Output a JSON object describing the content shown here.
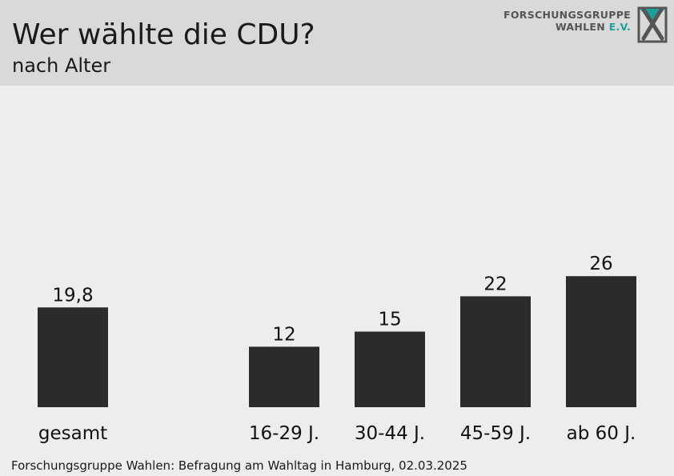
{
  "header": {
    "title": "Wer wählte die CDU?",
    "subtitle": "nach Alter",
    "logo": {
      "line1": "FORSCHUNGSGRUPPE",
      "line2_main": "WAHLEN ",
      "line2_accent": "E.V."
    }
  },
  "colors": {
    "bar": "#2b2b2b",
    "accent": "#1ca19a",
    "header_bg": "#d9d9d9",
    "plot_bg": "#ebeeed"
  },
  "chart_data": {
    "type": "bar",
    "title": "Wer wählte die CDU?",
    "subtitle": "nach Alter",
    "categories": [
      "gesamt",
      "16-29 J.",
      "30-44 J.",
      "45-59 J.",
      "ab 60 J."
    ],
    "values": [
      19.8,
      12,
      15,
      22,
      26
    ],
    "value_labels": [
      "19,8",
      "12",
      "15",
      "22",
      "26"
    ],
    "ylim": [
      0,
      30
    ],
    "grid": false,
    "legend": "none"
  },
  "footer": {
    "source": "Forschungsgruppe Wahlen: Befragung am Wahltag in Hamburg, 02.03.2025"
  }
}
